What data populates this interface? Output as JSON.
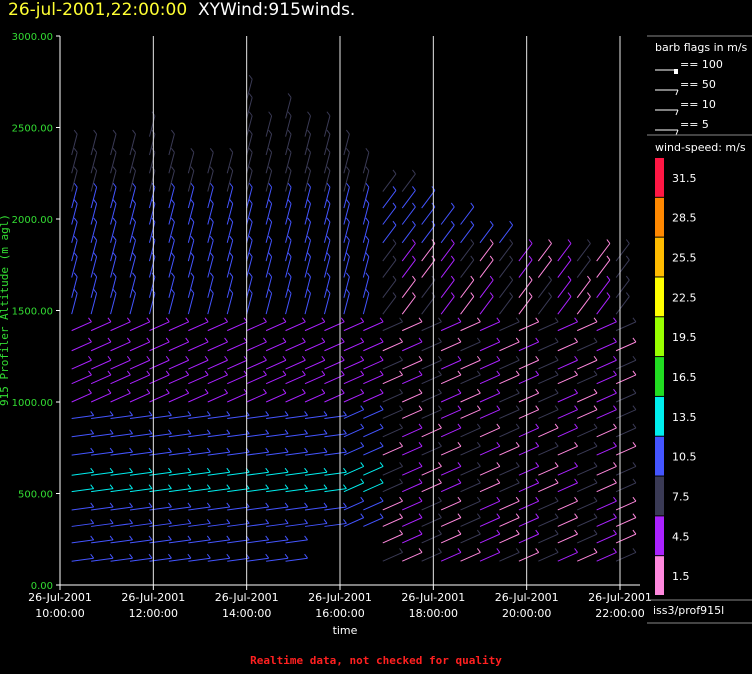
{
  "header": {
    "date": "26-jul-2001,22:00:00",
    "name": "XYWind:915winds."
  },
  "footer": {
    "note": "Realtime data, not checked for quality"
  },
  "legend": {
    "barb_title": "barb flags in m/s",
    "barbs": [
      "== 100",
      "== 50",
      "== 10",
      "== 5"
    ],
    "speed_title": "wind-speed: m/s",
    "speed_levels": [
      "31.5",
      "28.5",
      "25.5",
      "22.5",
      "19.5",
      "16.5",
      "13.5",
      "10.5",
      "7.5",
      "4.5",
      "1.5"
    ],
    "speed_colors": [
      "#ff1744",
      "#ff8800",
      "#ffbb00",
      "#ffff00",
      "#99ff00",
      "#22dd22",
      "#00eeee",
      "#4455ff",
      "#3a3a55",
      "#aa22ff",
      "#ff88dd"
    ],
    "source": "iss3/prof915l"
  },
  "chart_data": {
    "type": "scatter",
    "title": "26-jul-2001,22:00:00  XYWind:915winds.",
    "xlabel": "time",
    "ylabel": "915 Profiler Altitude (m agl)",
    "ylim": [
      0,
      3000
    ],
    "y_ticks": [
      "0.00",
      "500.00",
      "1000.00",
      "1500.00",
      "2000.00",
      "2500.00",
      "3000.00"
    ],
    "x_ticks": [
      {
        "date": "26-Jul-2001",
        "time": "10:00:00"
      },
      {
        "date": "26-Jul-2001",
        "time": "12:00:00"
      },
      {
        "date": "26-Jul-2001",
        "time": "14:00:00"
      },
      {
        "date": "26-Jul-2001",
        "time": "16:00:00"
      },
      {
        "date": "26-Jul-2001",
        "time": "18:00:00"
      },
      {
        "date": "26-Jul-2001",
        "time": "20:00:00"
      },
      {
        "date": "26-Jul-2001",
        "time": "22:00:00"
      }
    ],
    "xlim": [
      "10:00",
      "22:00"
    ],
    "grid": "vertical lines at tick times",
    "columns": [
      {
        "time": "10:15",
        "top": 2400
      },
      {
        "time": "10:40",
        "top": 2400
      },
      {
        "time": "11:05",
        "top": 2400
      },
      {
        "time": "11:30",
        "top": 2400
      },
      {
        "time": "11:55",
        "top": 2500
      },
      {
        "time": "12:20",
        "top": 2400
      },
      {
        "time": "12:45",
        "top": 2300
      },
      {
        "time": "13:10",
        "top": 2300
      },
      {
        "time": "13:35",
        "top": 2300
      },
      {
        "time": "14:00",
        "top": 2700
      },
      {
        "time": "14:25",
        "top": 2500
      },
      {
        "time": "14:50",
        "top": 2600
      },
      {
        "time": "15:15",
        "top": 2500
      },
      {
        "time": "15:40",
        "top": 2500
      },
      {
        "time": "16:05",
        "top": 2400
      },
      {
        "time": "16:30",
        "top": 2300
      },
      {
        "time": "16:55",
        "top": 2200
      },
      {
        "time": "17:20",
        "top": 2200
      },
      {
        "time": "17:45",
        "top": 2100
      },
      {
        "time": "18:10",
        "top": 2000
      },
      {
        "time": "18:35",
        "top": 2000
      },
      {
        "time": "19:00",
        "top": 1900
      },
      {
        "time": "19:25",
        "top": 1900
      },
      {
        "time": "19:50",
        "top": 1800
      },
      {
        "time": "20:15",
        "top": 1800
      },
      {
        "time": "20:40",
        "top": 1800
      },
      {
        "time": "21:05",
        "top": 1800
      },
      {
        "time": "21:30",
        "top": 1800
      },
      {
        "time": "21:55",
        "top": 1800
      }
    ],
    "levels_m": [
      130,
      230,
      320,
      410,
      510,
      600,
      710,
      810,
      910,
      1000,
      1100,
      1180,
      1280,
      1390,
      1480,
      1570,
      1680,
      1770,
      1870,
      1970,
      2060,
      2150,
      2250,
      2350,
      2450,
      2550,
      2650
    ],
    "speed_bands_by_altitude": [
      {
        "from": 0,
        "to": 450,
        "speed": 10.5
      },
      {
        "from": 450,
        "to": 650,
        "speed": 13.5
      },
      {
        "from": 650,
        "to": 950,
        "speed": 10.5
      },
      {
        "from": 950,
        "to": 1450,
        "speed": 4.5
      },
      {
        "from": 1450,
        "to": 2100,
        "speed": 10.5
      },
      {
        "from": 2100,
        "to": 3000,
        "speed": 7.5
      }
    ]
  }
}
